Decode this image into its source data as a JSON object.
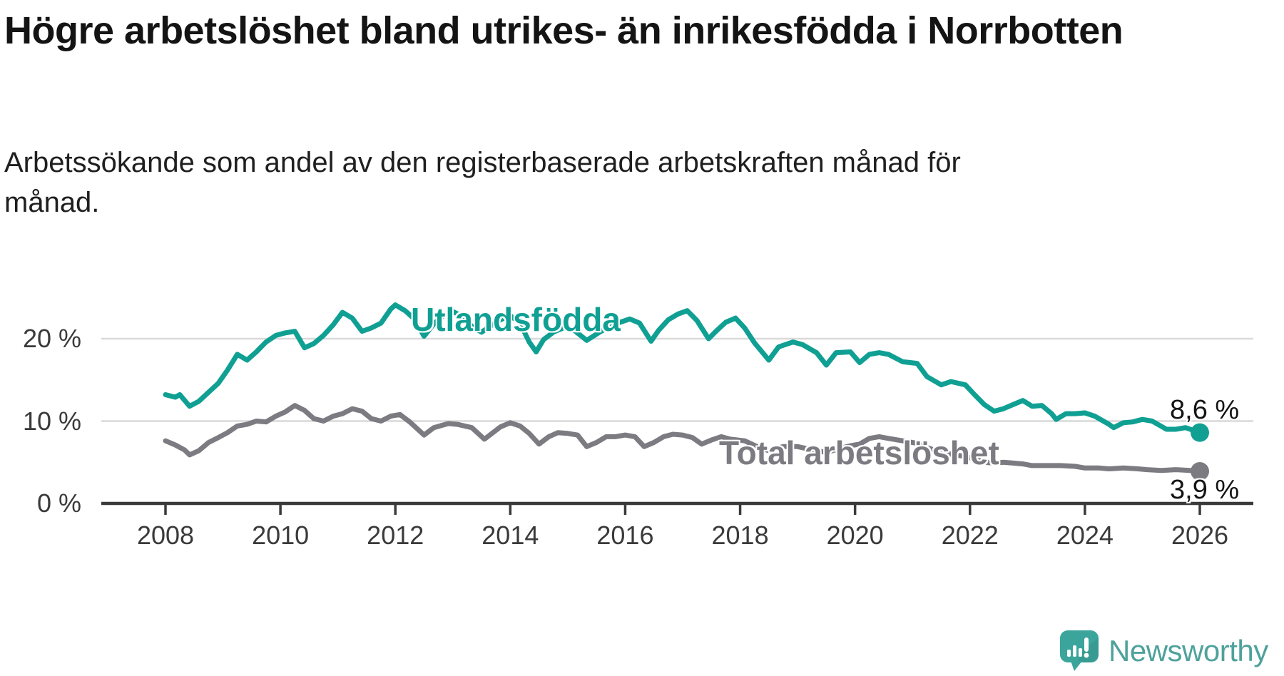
{
  "title": "Högre arbetslöshet bland utrikes- än inrikesfödda i Norrbotten",
  "subtitle": "Arbetssökande som andel av den registerbaserade arbetskraften månad för månad.",
  "branding": {
    "logo_text": "Newsworthy"
  },
  "colors": {
    "background": "#ffffff",
    "title_text": "#141414",
    "axis": "#3a3a3a",
    "grid": "#d9d9d9",
    "teal_series": "#10A093",
    "gray_series": "#7b7b81",
    "logo_icon": "#3BA59C",
    "logo_text": "#4EA29B"
  },
  "chart_data": {
    "type": "line",
    "title": "Högre arbetslöshet bland utrikes- än inrikesfödda i Norrbotten",
    "subtitle": "Arbetssökande som andel av den registerbaserade arbetskraften månad för månad.",
    "xlabel": "",
    "ylabel": "",
    "x_unit": "year (decimal, monthly data)",
    "y_unit": "%",
    "xlim": [
      2007.9,
      2026.95
    ],
    "ylim": [
      0,
      26
    ],
    "grid": "horizontal",
    "x_ticks": [
      2008,
      2010,
      2012,
      2014,
      2016,
      2018,
      2020,
      2022,
      2024,
      2026
    ],
    "x_tick_labels": [
      "2008",
      "2010",
      "2012",
      "2014",
      "2016",
      "2018",
      "2020",
      "2022",
      "2024",
      "2026"
    ],
    "y_ticks": [
      0,
      10,
      20
    ],
    "y_tick_labels": [
      "0 %",
      "10 %",
      "20 %"
    ],
    "legend_position": "inline-labels",
    "series": [
      {
        "name": "Utlandsfödda",
        "color": "#10A093",
        "end_label": "8,6 %",
        "end_value": 8.6,
        "points": [
          [
            2008.0,
            13.2
          ],
          [
            2008.17,
            12.9
          ],
          [
            2008.25,
            13.2
          ],
          [
            2008.42,
            11.8
          ],
          [
            2008.58,
            12.4
          ],
          [
            2008.75,
            13.5
          ],
          [
            2008.92,
            14.6
          ],
          [
            2009.08,
            16.2
          ],
          [
            2009.25,
            18.1
          ],
          [
            2009.42,
            17.4
          ],
          [
            2009.58,
            18.4
          ],
          [
            2009.75,
            19.6
          ],
          [
            2009.92,
            20.4
          ],
          [
            2010.08,
            20.7
          ],
          [
            2010.25,
            20.9
          ],
          [
            2010.42,
            18.9
          ],
          [
            2010.58,
            19.4
          ],
          [
            2010.75,
            20.4
          ],
          [
            2010.92,
            21.7
          ],
          [
            2011.08,
            23.2
          ],
          [
            2011.25,
            22.5
          ],
          [
            2011.42,
            20.9
          ],
          [
            2011.58,
            21.3
          ],
          [
            2011.75,
            21.9
          ],
          [
            2011.92,
            23.6
          ],
          [
            2012.0,
            24.1
          ],
          [
            2012.17,
            23.4
          ],
          [
            2012.33,
            22.4
          ],
          [
            2012.5,
            20.3
          ],
          [
            2012.67,
            21.8
          ],
          [
            2012.83,
            22.8
          ],
          [
            2013.0,
            23.3
          ],
          [
            2013.17,
            22.7
          ],
          [
            2013.33,
            21.5
          ],
          [
            2013.5,
            20.8
          ],
          [
            2013.67,
            21.6
          ],
          [
            2013.83,
            22.3
          ],
          [
            2014.0,
            22.8
          ],
          [
            2014.17,
            21.9
          ],
          [
            2014.33,
            19.6
          ],
          [
            2014.45,
            18.4
          ],
          [
            2014.58,
            19.9
          ],
          [
            2014.75,
            20.8
          ],
          [
            2014.92,
            21.3
          ],
          [
            2015.08,
            21.2
          ],
          [
            2015.33,
            19.8
          ],
          [
            2015.58,
            20.9
          ],
          [
            2015.83,
            21.8
          ],
          [
            2016.08,
            22.4
          ],
          [
            2016.25,
            21.9
          ],
          [
            2016.45,
            19.7
          ],
          [
            2016.58,
            21.0
          ],
          [
            2016.75,
            22.3
          ],
          [
            2016.92,
            23.0
          ],
          [
            2017.08,
            23.4
          ],
          [
            2017.25,
            22.2
          ],
          [
            2017.45,
            20.0
          ],
          [
            2017.58,
            20.9
          ],
          [
            2017.75,
            22.0
          ],
          [
            2017.92,
            22.5
          ],
          [
            2018.08,
            21.3
          ],
          [
            2018.25,
            19.5
          ],
          [
            2018.5,
            17.4
          ],
          [
            2018.67,
            19.0
          ],
          [
            2018.92,
            19.6
          ],
          [
            2019.08,
            19.3
          ],
          [
            2019.33,
            18.3
          ],
          [
            2019.5,
            16.8
          ],
          [
            2019.67,
            18.3
          ],
          [
            2019.92,
            18.4
          ],
          [
            2020.08,
            17.1
          ],
          [
            2020.25,
            18.1
          ],
          [
            2020.42,
            18.3
          ],
          [
            2020.58,
            18.1
          ],
          [
            2020.83,
            17.2
          ],
          [
            2021.08,
            17.0
          ],
          [
            2021.25,
            15.4
          ],
          [
            2021.5,
            14.4
          ],
          [
            2021.67,
            14.8
          ],
          [
            2021.92,
            14.4
          ],
          [
            2022.08,
            13.2
          ],
          [
            2022.25,
            12.0
          ],
          [
            2022.42,
            11.2
          ],
          [
            2022.58,
            11.5
          ],
          [
            2022.75,
            12.0
          ],
          [
            2022.92,
            12.5
          ],
          [
            2023.08,
            11.8
          ],
          [
            2023.25,
            11.9
          ],
          [
            2023.42,
            10.9
          ],
          [
            2023.5,
            10.2
          ],
          [
            2023.67,
            10.9
          ],
          [
            2023.83,
            10.9
          ],
          [
            2024.0,
            11.0
          ],
          [
            2024.17,
            10.6
          ],
          [
            2024.42,
            9.6
          ],
          [
            2024.5,
            9.2
          ],
          [
            2024.67,
            9.8
          ],
          [
            2024.83,
            9.9
          ],
          [
            2025.0,
            10.2
          ],
          [
            2025.17,
            10.0
          ],
          [
            2025.42,
            9.0
          ],
          [
            2025.58,
            9.0
          ],
          [
            2025.75,
            9.2
          ],
          [
            2025.92,
            8.8
          ],
          [
            2026.0,
            8.6
          ]
        ]
      },
      {
        "name": "Total arbetslöshet",
        "color": "#7b7b81",
        "end_label": "3,9 %",
        "end_value": 3.9,
        "points": [
          [
            2008.0,
            7.6
          ],
          [
            2008.17,
            7.1
          ],
          [
            2008.33,
            6.5
          ],
          [
            2008.42,
            5.9
          ],
          [
            2008.58,
            6.4
          ],
          [
            2008.75,
            7.4
          ],
          [
            2008.92,
            8.0
          ],
          [
            2009.08,
            8.6
          ],
          [
            2009.25,
            9.4
          ],
          [
            2009.42,
            9.6
          ],
          [
            2009.58,
            10.0
          ],
          [
            2009.75,
            9.9
          ],
          [
            2009.92,
            10.6
          ],
          [
            2010.08,
            11.1
          ],
          [
            2010.25,
            11.9
          ],
          [
            2010.42,
            11.3
          ],
          [
            2010.58,
            10.3
          ],
          [
            2010.75,
            10.0
          ],
          [
            2010.92,
            10.6
          ],
          [
            2011.08,
            10.9
          ],
          [
            2011.25,
            11.5
          ],
          [
            2011.42,
            11.2
          ],
          [
            2011.58,
            10.3
          ],
          [
            2011.75,
            10.0
          ],
          [
            2011.92,
            10.6
          ],
          [
            2012.08,
            10.8
          ],
          [
            2012.25,
            9.9
          ],
          [
            2012.5,
            8.3
          ],
          [
            2012.67,
            9.2
          ],
          [
            2012.92,
            9.7
          ],
          [
            2013.08,
            9.6
          ],
          [
            2013.33,
            9.2
          ],
          [
            2013.55,
            7.8
          ],
          [
            2013.83,
            9.3
          ],
          [
            2014.0,
            9.8
          ],
          [
            2014.17,
            9.4
          ],
          [
            2014.33,
            8.5
          ],
          [
            2014.5,
            7.2
          ],
          [
            2014.67,
            8.1
          ],
          [
            2014.83,
            8.6
          ],
          [
            2015.0,
            8.5
          ],
          [
            2015.17,
            8.3
          ],
          [
            2015.33,
            6.9
          ],
          [
            2015.5,
            7.4
          ],
          [
            2015.67,
            8.1
          ],
          [
            2015.83,
            8.1
          ],
          [
            2016.0,
            8.3
          ],
          [
            2016.17,
            8.1
          ],
          [
            2016.33,
            6.9
          ],
          [
            2016.5,
            7.4
          ],
          [
            2016.67,
            8.1
          ],
          [
            2016.83,
            8.4
          ],
          [
            2017.0,
            8.3
          ],
          [
            2017.17,
            8.0
          ],
          [
            2017.33,
            7.2
          ],
          [
            2017.5,
            7.7
          ],
          [
            2017.67,
            8.1
          ],
          [
            2017.83,
            7.8
          ],
          [
            2018.08,
            7.6
          ],
          [
            2018.33,
            6.8
          ],
          [
            2018.5,
            6.4
          ],
          [
            2018.75,
            6.9
          ],
          [
            2019.0,
            6.9
          ],
          [
            2019.33,
            6.4
          ],
          [
            2019.5,
            6.2
          ],
          [
            2019.75,
            6.7
          ],
          [
            2019.92,
            7.0
          ],
          [
            2020.08,
            7.2
          ],
          [
            2020.25,
            7.9
          ],
          [
            2020.42,
            8.1
          ],
          [
            2020.58,
            7.9
          ],
          [
            2020.83,
            7.6
          ],
          [
            2021.08,
            7.3
          ],
          [
            2021.25,
            6.8
          ],
          [
            2021.5,
            6.2
          ],
          [
            2021.75,
            5.9
          ],
          [
            2021.92,
            5.7
          ],
          [
            2022.08,
            5.4
          ],
          [
            2022.25,
            5.0
          ],
          [
            2022.42,
            4.9
          ],
          [
            2022.58,
            5.0
          ],
          [
            2022.75,
            4.9
          ],
          [
            2022.92,
            4.8
          ],
          [
            2023.08,
            4.6
          ],
          [
            2023.33,
            4.6
          ],
          [
            2023.58,
            4.6
          ],
          [
            2023.83,
            4.5
          ],
          [
            2024.0,
            4.3
          ],
          [
            2024.25,
            4.3
          ],
          [
            2024.42,
            4.2
          ],
          [
            2024.67,
            4.3
          ],
          [
            2024.92,
            4.2
          ],
          [
            2025.08,
            4.1
          ],
          [
            2025.33,
            4.0
          ],
          [
            2025.58,
            4.1
          ],
          [
            2025.83,
            4.0
          ],
          [
            2026.0,
            3.9
          ]
        ]
      }
    ]
  }
}
